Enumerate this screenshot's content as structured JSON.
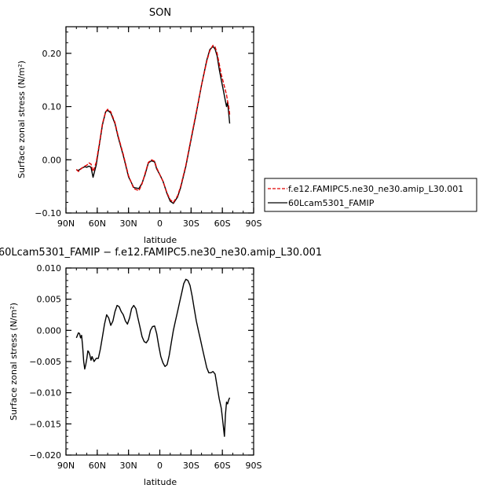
{
  "chart_data": [
    {
      "type": "line",
      "title": "SON",
      "xlabel": "latitude",
      "ylabel": "Surface zonal stress (N/m²)",
      "xlim": [
        90,
        -90
      ],
      "ylim": [
        -0.1,
        0.25
      ],
      "x_ticks": [
        90,
        60,
        30,
        0,
        -30,
        -60,
        -90
      ],
      "x_tick_labels": [
        "90N",
        "60N",
        "30N",
        "0",
        "30S",
        "60S",
        "90S"
      ],
      "y_ticks": [
        -0.1,
        0.0,
        0.1,
        0.2
      ],
      "y_tick_labels": [
        "−0.10",
        "0.00",
        "0.10",
        "0.20"
      ],
      "legend_position": "right",
      "series": [
        {
          "name": "f.e12.FAMIPC5.ne30_ne30.amip_L30.001",
          "color": "#e00000",
          "dash": "dashed",
          "x": [
            80,
            78,
            75,
            72,
            70,
            68,
            66,
            64,
            61,
            58,
            55,
            52,
            50,
            47,
            43,
            40,
            35,
            30,
            25,
            20,
            17,
            14,
            11,
            8,
            5,
            3,
            0,
            -3,
            -7,
            -10,
            -13,
            -17,
            -20,
            -25,
            -30,
            -35,
            -40,
            -45,
            -48,
            -51,
            -53,
            -55,
            -57,
            -59,
            -61,
            -63,
            -64,
            -65,
            -66,
            -67
          ],
          "y": [
            -0.018,
            -0.022,
            -0.016,
            -0.012,
            -0.01,
            -0.006,
            -0.008,
            -0.022,
            -0.005,
            0.03,
            0.068,
            0.09,
            0.095,
            0.09,
            0.07,
            0.045,
            0.01,
            -0.03,
            -0.054,
            -0.058,
            -0.045,
            -0.025,
            -0.005,
            0.0,
            -0.003,
            -0.015,
            -0.028,
            -0.04,
            -0.063,
            -0.075,
            -0.08,
            -0.068,
            -0.05,
            -0.01,
            0.04,
            0.09,
            0.14,
            0.185,
            0.205,
            0.215,
            0.212,
            0.2,
            0.18,
            0.16,
            0.145,
            0.13,
            0.122,
            0.11,
            0.102,
            0.085
          ]
        },
        {
          "name": "60Lcam5301_FAMIP",
          "color": "#000000",
          "dash": "solid",
          "x": [
            80,
            78,
            75,
            72,
            70,
            68,
            66,
            64,
            61,
            58,
            55,
            52,
            50,
            47,
            43,
            40,
            35,
            30,
            25,
            20,
            17,
            14,
            11,
            8,
            5,
            3,
            0,
            -3,
            -7,
            -10,
            -13,
            -17,
            -20,
            -25,
            -30,
            -35,
            -40,
            -45,
            -48,
            -51,
            -53,
            -55,
            -57,
            -59,
            -61,
            -63,
            -64,
            -65,
            -66,
            -67
          ],
          "y": [
            -0.019,
            -0.02,
            -0.016,
            -0.013,
            -0.014,
            -0.012,
            -0.014,
            -0.033,
            -0.01,
            0.028,
            0.066,
            0.09,
            0.093,
            0.088,
            0.068,
            0.043,
            0.008,
            -0.032,
            -0.052,
            -0.054,
            -0.044,
            -0.027,
            -0.006,
            -0.002,
            -0.004,
            -0.017,
            -0.028,
            -0.04,
            -0.064,
            -0.078,
            -0.082,
            -0.07,
            -0.052,
            -0.012,
            0.038,
            0.088,
            0.14,
            0.187,
            0.207,
            0.213,
            0.208,
            0.195,
            0.17,
            0.15,
            0.13,
            0.11,
            0.1,
            0.108,
            0.09,
            0.068
          ]
        }
      ]
    },
    {
      "type": "line",
      "title": "60Lcam5301_FAMIP − f.e12.FAMIPC5.ne30_ne30.amip_L30.001",
      "xlabel": "latitude",
      "ylabel": "Surface zonal stress (N/m²)",
      "xlim": [
        90,
        -90
      ],
      "ylim": [
        -0.02,
        0.01
      ],
      "x_ticks": [
        90,
        60,
        30,
        0,
        -30,
        -60,
        -90
      ],
      "x_tick_labels": [
        "90N",
        "60N",
        "30N",
        "0",
        "30S",
        "60S",
        "90S"
      ],
      "y_ticks": [
        -0.02,
        -0.015,
        -0.01,
        -0.005,
        0.0,
        0.005,
        0.01
      ],
      "y_tick_labels": [
        "−0.020",
        "−0.015",
        "−0.010",
        "−0.005",
        "0.000",
        "0.005",
        "0.010"
      ],
      "series": [
        {
          "color": "#000000",
          "dash": "solid",
          "x": [
            80,
            79,
            78,
            77,
            76,
            75,
            74,
            73,
            72,
            71,
            70,
            69,
            68,
            67,
            66,
            65,
            64,
            63,
            61,
            59,
            57,
            55,
            53,
            51,
            49,
            47,
            45,
            43,
            41,
            39,
            37,
            35,
            33,
            31,
            29,
            27,
            25,
            23,
            21,
            19,
            17,
            15,
            13,
            11,
            9,
            7,
            5,
            3,
            1,
            -1,
            -3,
            -5,
            -7,
            -9,
            -11,
            -13,
            -15,
            -17,
            -19,
            -21,
            -23,
            -25,
            -27,
            -29,
            -31,
            -33,
            -35,
            -37,
            -39,
            -41,
            -43,
            -45,
            -47,
            -49,
            -51,
            -53,
            -55,
            -57,
            -59,
            -60,
            -61,
            -62,
            -63,
            -64,
            -65,
            -66,
            -67
          ],
          "y": [
            -0.0012,
            -0.0008,
            -0.0004,
            -0.0005,
            -0.0012,
            -0.0008,
            -0.0025,
            -0.005,
            -0.0062,
            -0.0055,
            -0.0045,
            -0.0033,
            -0.0035,
            -0.004,
            -0.0048,
            -0.0042,
            -0.0046,
            -0.005,
            -0.0045,
            -0.0045,
            -0.003,
            -0.001,
            0.001,
            0.0025,
            0.002,
            0.0008,
            0.0015,
            0.003,
            0.004,
            0.0038,
            0.003,
            0.0025,
            0.0015,
            0.001,
            0.002,
            0.0035,
            0.004,
            0.0035,
            0.002,
            0.0005,
            -0.001,
            -0.0018,
            -0.002,
            -0.0015,
            0.0,
            0.0006,
            0.0007,
            -0.0005,
            -0.0025,
            -0.0042,
            -0.0052,
            -0.0058,
            -0.0055,
            -0.004,
            -0.002,
            0.0,
            0.0015,
            0.003,
            0.0045,
            0.006,
            0.0075,
            0.0082,
            0.008,
            0.0072,
            0.0055,
            0.0035,
            0.0015,
            0.0,
            -0.0015,
            -0.003,
            -0.0045,
            -0.006,
            -0.0068,
            -0.0068,
            -0.0066,
            -0.007,
            -0.009,
            -0.011,
            -0.0125,
            -0.014,
            -0.0155,
            -0.017,
            -0.0135,
            -0.0115,
            -0.0118,
            -0.0112,
            -0.0108
          ]
        }
      ]
    }
  ]
}
